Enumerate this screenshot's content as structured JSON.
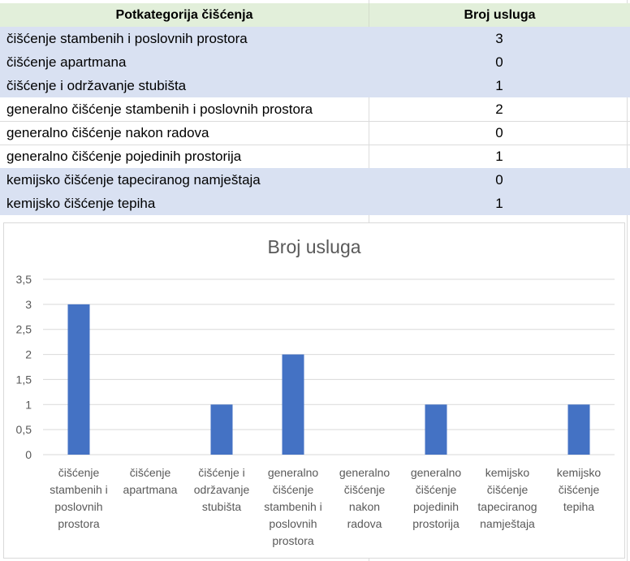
{
  "table": {
    "headers": [
      "Potkategorija čišćenja",
      "Broj usluga"
    ],
    "rows": [
      {
        "category": "čišćenje stambenih i poslovnih prostora",
        "count": "3",
        "highlight": true
      },
      {
        "category": "čišćenje apartmana",
        "count": "0",
        "highlight": true
      },
      {
        "category": "čišćenje i održavanje stubišta",
        "count": "1",
        "highlight": true
      },
      {
        "category": "generalno čišćenje stambenih i poslovnih prostora",
        "count": "2",
        "highlight": false
      },
      {
        "category": "generalno čišćenje nakon radova",
        "count": "0",
        "highlight": false
      },
      {
        "category": "generalno čišćenje pojedinih prostorija",
        "count": "1",
        "highlight": false
      },
      {
        "category": "kemijsko čišćenje tapeciranog namještaja",
        "count": "0",
        "highlight": true
      },
      {
        "category": "kemijsko čišćenje tepiha",
        "count": "1",
        "highlight": true
      }
    ],
    "colors": {
      "header": "#e2efda",
      "band": "#d9e1f2"
    }
  },
  "chart_data": {
    "type": "bar",
    "title": "Broj usluga",
    "xlabel": "",
    "ylabel": "",
    "categories": [
      "čišćenje stambenih i poslovnih prostora",
      "čišćenje apartmana",
      "čišćenje i održavanje stubišta",
      "generalno čišćenje stambenih i poslovnih prostora",
      "generalno čišćenje nakon radova",
      "generalno čišćenje pojedinih prostorija",
      "kemijsko čišćenje tapeciranog namještaja",
      "kemijsko čišćenje tepiha"
    ],
    "category_label_lines": [
      [
        "čišćenje",
        "stambenih i",
        "poslovnih",
        "prostora"
      ],
      [
        "čišćenje",
        "apartmana"
      ],
      [
        "čišćenje i",
        "održavanje",
        "stubišta"
      ],
      [
        "generalno",
        "čišćenje",
        "stambenih i",
        "poslovnih",
        "prostora"
      ],
      [
        "generalno",
        "čišćenje",
        "nakon",
        "radova"
      ],
      [
        "generalno",
        "čišćenje",
        "pojedinih",
        "prostorija"
      ],
      [
        "kemijsko",
        "čišćenje",
        "tapeciranog",
        "namještaja"
      ],
      [
        "kemijsko",
        "čišćenje",
        "tepiha"
      ]
    ],
    "values": [
      3,
      0,
      1,
      2,
      0,
      1,
      0,
      1
    ],
    "ylim": [
      0,
      3.5
    ],
    "yticks": [
      "0",
      "0,5",
      "1",
      "1,5",
      "2",
      "2,5",
      "3",
      "3,5"
    ],
    "grid": true,
    "legend": "none",
    "bar_color": "#4472c4",
    "gridline_color": "#d9d9d9"
  }
}
